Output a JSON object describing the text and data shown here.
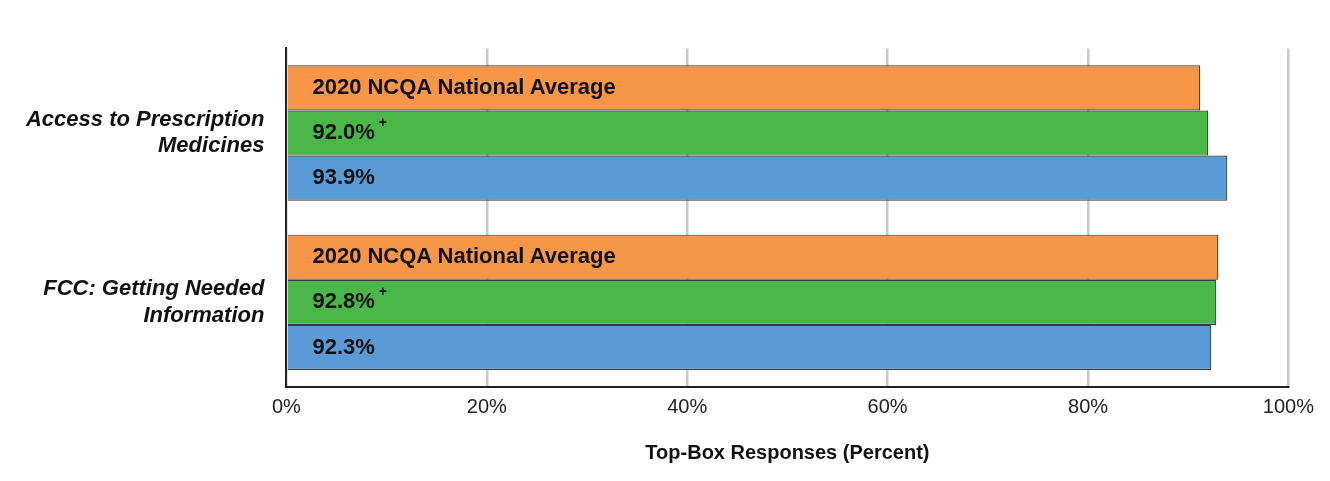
{
  "chart_data": {
    "type": "bar",
    "orientation": "horizontal",
    "xlabel": "Top-Box Responses (Percent)",
    "categories": [
      "Access to Prescription Medicines",
      "FCC: Getting Needed Information"
    ],
    "series": [
      {
        "name": "2020 NCQA National Average",
        "color": "#f79646",
        "values": [
          91.2,
          93.0
        ]
      },
      {
        "color": "#4cb749",
        "values": [
          92.0,
          92.8
        ],
        "value_labels": [
          "92.0%$^{+}$",
          "92.8%$^{+}$"
        ]
      },
      {
        "color": "#5b9bd5",
        "values": [
          93.9,
          92.3
        ],
        "value_labels": [
          "93.9%",
          "92.3%"
        ]
      }
    ],
    "xlim": [
      0,
      100
    ],
    "xticks": [
      {
        "value": 0,
        "label": "0%"
      },
      {
        "value": 20,
        "label": "20%"
      },
      {
        "value": 40,
        "label": "40%"
      },
      {
        "value": 60,
        "label": "60%"
      },
      {
        "value": 80,
        "label": "80%"
      },
      {
        "value": 100,
        "label": "100%"
      }
    ],
    "grid": "x",
    "legend": false
  }
}
